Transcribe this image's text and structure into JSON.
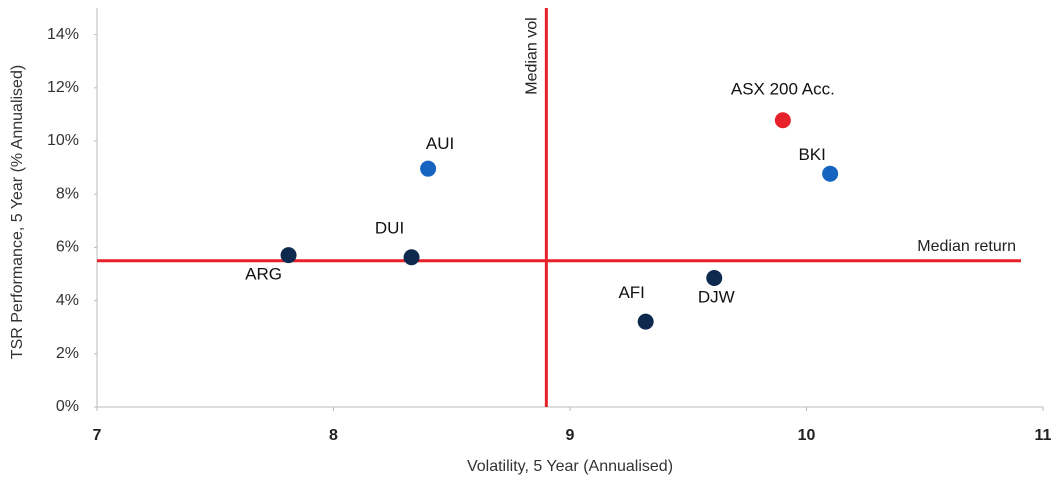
{
  "chart_data": {
    "type": "scatter",
    "x_label": "Volatility, 5 Year (Annualised)",
    "y_label": "TSR Performance, 5 Year (% Annualised)",
    "labels": [
      "ARG",
      "DUI",
      "AUI",
      "AFI",
      "DJW",
      "ASX 200 Acc.",
      "BKI"
    ],
    "x": [
      7.81,
      8.33,
      8.4,
      9.32,
      9.61,
      9.9,
      10.1
    ],
    "values": [
      5.71,
      5.63,
      8.96,
      3.21,
      4.85,
      10.78,
      8.77
    ],
    "colors": [
      "#0d2a4e",
      "#0d2a4e",
      "#1565c0",
      "#0d2a4e",
      "#0d2a4e",
      "#e8202a",
      "#1565c0"
    ],
    "reference_lines": [
      {
        "label": "Median vol",
        "axis": "x",
        "value": 8.9,
        "color": "#e8202a"
      },
      {
        "label": "Median return",
        "axis": "y",
        "value": 5.5,
        "color": "#e8202a"
      }
    ],
    "xlim": [
      7,
      11
    ],
    "xticks": [
      7,
      8,
      9,
      10,
      11
    ],
    "ylim": [
      0,
      15
    ],
    "yticks": [
      {
        "value": 0,
        "label": "0%"
      },
      {
        "value": 2,
        "label": "2%"
      },
      {
        "value": 4,
        "label": "4%"
      },
      {
        "value": 6,
        "label": "6%"
      },
      {
        "value": 8,
        "label": "8%"
      },
      {
        "value": 10,
        "label": "10%"
      },
      {
        "value": 12,
        "label": "12%"
      },
      {
        "value": 14,
        "label": "14%"
      }
    ]
  }
}
